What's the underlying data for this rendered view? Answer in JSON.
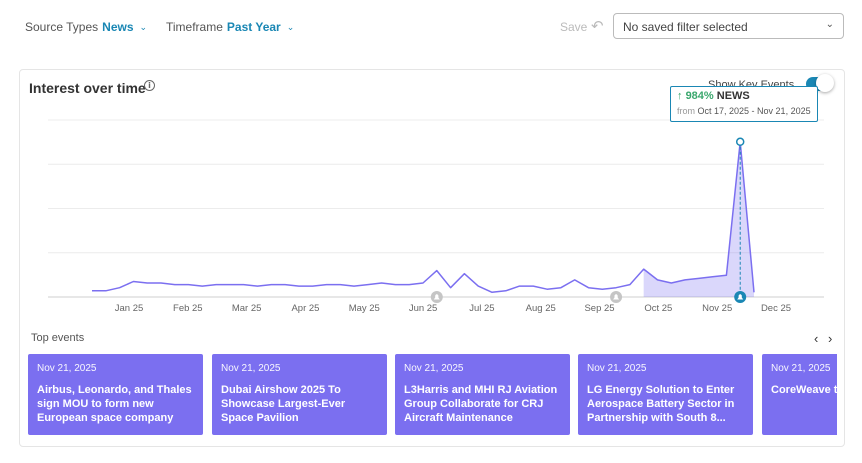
{
  "filters": {
    "source_label": "Source Types",
    "source_value": "News",
    "timeframe_label": "Timeframe",
    "timeframe_value": "Past Year"
  },
  "toolbar": {
    "save_label": "Save"
  },
  "saved_filter": {
    "value": "No saved filter selected"
  },
  "card": {
    "title": "Interest over time",
    "show_key_events_label": "Show Key Events",
    "show_key_events_on": true
  },
  "tooltip": {
    "percent": "984%",
    "source": "NEWS",
    "from_label": "from",
    "range": "Oct 17, 2025 - Nov 21, 2025"
  },
  "chart_data": {
    "type": "line",
    "x_tick_labels": [
      "Jan 25",
      "Feb 25",
      "Mar 25",
      "Apr 25",
      "May 25",
      "Jun 25",
      "Jul 25",
      "Aug 25",
      "Sep 25",
      "Oct 25",
      "Nov 25",
      "Dec 25"
    ],
    "series": [
      {
        "values": [
          4,
          4,
          6,
          10,
          9,
          9,
          8,
          8,
          7,
          8,
          8,
          8,
          7,
          8,
          8,
          7,
          7,
          8,
          8,
          7,
          8,
          9,
          8,
          8,
          9,
          17,
          6,
          15,
          7,
          3,
          4,
          7,
          7,
          5,
          6,
          11,
          6,
          5,
          6,
          8,
          18,
          11,
          9,
          11,
          12,
          13,
          14,
          100,
          3
        ]
      }
    ],
    "highlight_range_index": [
      40,
      48
    ],
    "peak_index": 47,
    "key_event_indices": [
      25,
      38,
      47
    ],
    "ylim": [
      0,
      105
    ],
    "grid": true,
    "color": "#7b6ff0"
  },
  "top_events": {
    "label": "Top events",
    "items": [
      {
        "date": "Nov 21, 2025",
        "title": "Airbus, Leonardo, and Thales sign MOU to form new European space company"
      },
      {
        "date": "Nov 21, 2025",
        "title": "Dubai Airshow 2025 To Showcase Largest-Ever Space Pavilion"
      },
      {
        "date": "Nov 21, 2025",
        "title": "L3Harris and MHI RJ Aviation Group Collaborate for CRJ Aircraft Maintenance"
      },
      {
        "date": "Nov 21, 2025",
        "title": "LG Energy Solution to Enter Aerospace Battery Sector in Partnership with South 8..."
      },
      {
        "date": "Nov 21, 2025",
        "title": "CoreWeave to Federal Marke"
      }
    ]
  },
  "colors": {
    "accent": "#1a87b4",
    "series": "#7b6ff0",
    "up": "#3aa76d"
  }
}
